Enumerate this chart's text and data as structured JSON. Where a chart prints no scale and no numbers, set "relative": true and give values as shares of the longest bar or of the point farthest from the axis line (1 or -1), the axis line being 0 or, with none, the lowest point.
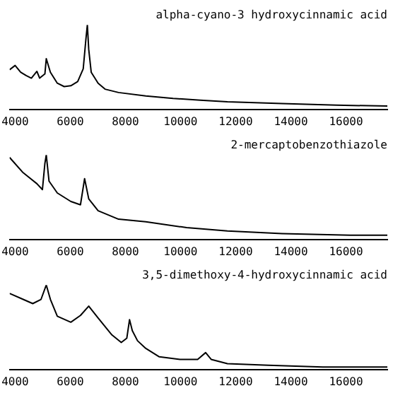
{
  "chart_data": [
    {
      "type": "line",
      "title": "alpha-cyano-3 hydroxycinnamic acid",
      "relative": true,
      "xlim": [
        3800,
        17500
      ],
      "xticks": [
        4000,
        6000,
        8000,
        10000,
        12000,
        14000,
        16000
      ],
      "grid": false,
      "legend": false,
      "marker": "none",
      "series": [
        {
          "color": "#000000",
          "x": [
            3800,
            4000,
            4200,
            4400,
            4590,
            4790,
            4890,
            5080,
            5130,
            5280,
            5530,
            5780,
            6020,
            6270,
            6470,
            6570,
            6620,
            6670,
            6760,
            7010,
            7260,
            7750,
            8740,
            9730,
            10720,
            11700,
            13680,
            15660,
            17500
          ],
          "values": [
            0.47,
            0.52,
            0.44,
            0.4,
            0.37,
            0.45,
            0.37,
            0.42,
            0.6,
            0.44,
            0.31,
            0.27,
            0.28,
            0.33,
            0.48,
            0.84,
            1,
            0.71,
            0.44,
            0.31,
            0.24,
            0.2,
            0.16,
            0.13,
            0.11,
            0.09,
            0.07,
            0.05,
            0.04
          ]
        }
      ]
    },
    {
      "type": "line",
      "title": "2-mercaptobenzothiazole",
      "relative": true,
      "xlim": [
        3800,
        17500
      ],
      "xticks": [
        4000,
        6000,
        8000,
        10000,
        12000,
        14000,
        16000
      ],
      "grid": false,
      "legend": false,
      "marker": "none",
      "series": [
        {
          "color": "#000000",
          "x": [
            3800,
            4290,
            4790,
            4990,
            5080,
            5130,
            5230,
            5530,
            6020,
            6370,
            6520,
            6670,
            7010,
            7750,
            8740,
            10220,
            11700,
            13680,
            16150,
            17500
          ],
          "values": [
            0.97,
            0.79,
            0.66,
            0.59,
            0.9,
            1,
            0.69,
            0.55,
            0.45,
            0.41,
            0.72,
            0.48,
            0.34,
            0.24,
            0.21,
            0.14,
            0.1,
            0.07,
            0.05,
            0.05
          ]
        }
      ]
    },
    {
      "type": "line",
      "title": "3,5-dimethoxy-4-hydroxycinnamic acid",
      "relative": true,
      "xlim": [
        3800,
        17500
      ],
      "xticks": [
        4000,
        6000,
        8000,
        10000,
        12000,
        14000,
        16000
      ],
      "grid": false,
      "legend": false,
      "marker": "none",
      "series": [
        {
          "color": "#000000",
          "x": [
            3800,
            4290,
            4640,
            4940,
            5130,
            5280,
            5530,
            6020,
            6370,
            6670,
            7010,
            7510,
            7850,
            8050,
            8150,
            8250,
            8440,
            8740,
            9230,
            9980,
            10620,
            10910,
            11110,
            11700,
            13190,
            15160,
            17500
          ],
          "values": [
            0.9,
            0.83,
            0.78,
            0.83,
            1,
            0.83,
            0.63,
            0.56,
            0.64,
            0.75,
            0.61,
            0.41,
            0.32,
            0.37,
            0.59,
            0.46,
            0.34,
            0.25,
            0.15,
            0.12,
            0.12,
            0.2,
            0.12,
            0.07,
            0.05,
            0.03,
            0.03
          ]
        }
      ]
    }
  ]
}
